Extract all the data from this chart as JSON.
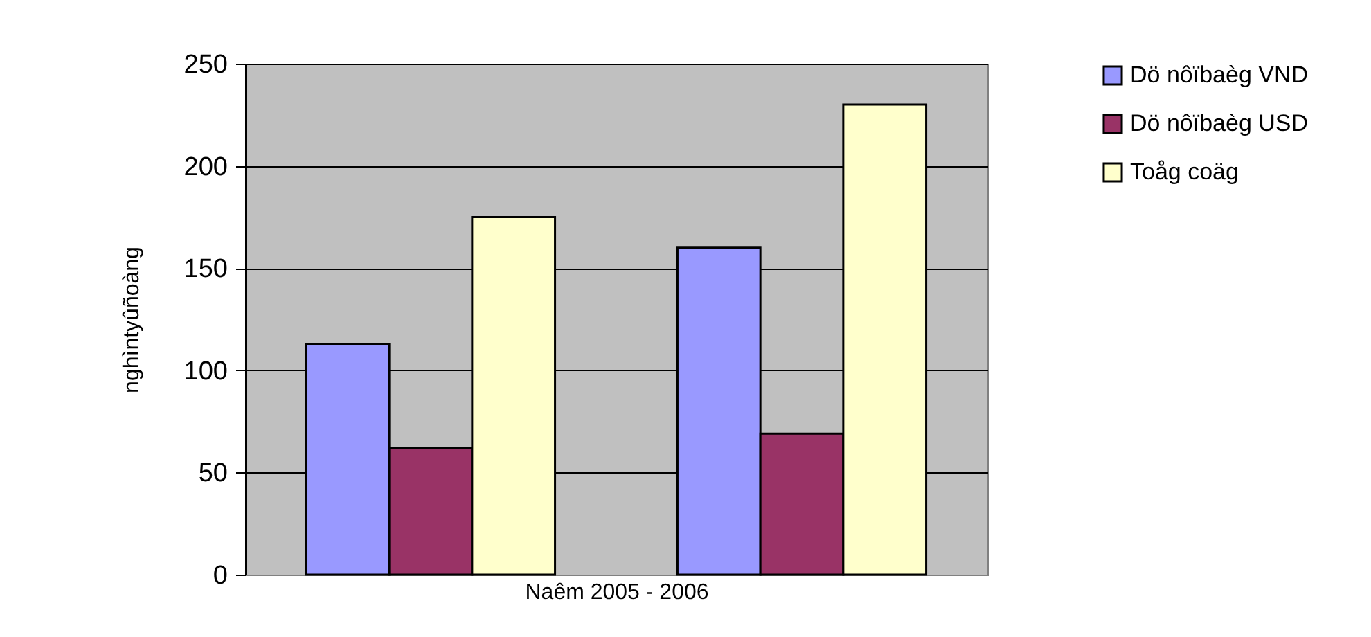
{
  "chart_data": {
    "type": "bar",
    "xlabel": "Naêm 2005 - 2006",
    "ylabel": "nghìntyûñoàng",
    "categories": [
      null,
      null
    ],
    "series": [
      {
        "name": "Dö nôïbaèg VND",
        "color": "#9999ff",
        "values": [
          113,
          160
        ]
      },
      {
        "name": "Dö nôïbaèg USD",
        "color": "#993366",
        "values": [
          62,
          69
        ]
      },
      {
        "name": "Toåg coäg",
        "color": "#ffffcc",
        "values": [
          175,
          230
        ]
      }
    ],
    "ylim": [
      0,
      250
    ],
    "yticks": [
      0,
      50,
      100,
      150,
      200,
      250
    ],
    "grid": "y",
    "legend": "right"
  }
}
